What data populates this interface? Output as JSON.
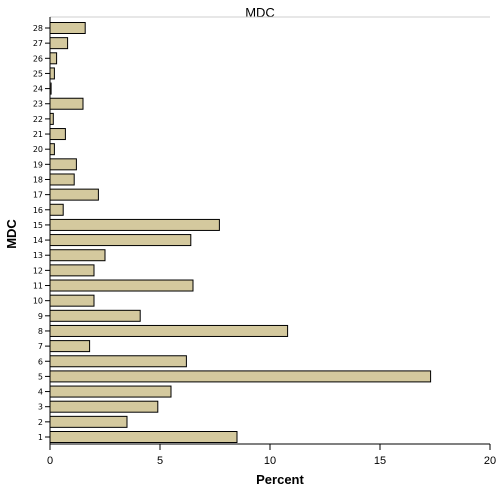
{
  "chart_data": {
    "type": "bar",
    "orientation": "horizontal",
    "title": "MDC",
    "xlabel": "Percent",
    "ylabel": "MDC",
    "categories": [
      "1",
      "2",
      "3",
      "4",
      "5",
      "6",
      "7",
      "8",
      "9",
      "10",
      "11",
      "12",
      "13",
      "14",
      "15",
      "16",
      "17",
      "18",
      "19",
      "20",
      "21",
      "22",
      "23",
      "24",
      "25",
      "26",
      "27",
      "28"
    ],
    "values": [
      8.5,
      3.5,
      4.9,
      5.5,
      17.3,
      6.2,
      1.8,
      10.8,
      4.1,
      2.0,
      6.5,
      2.0,
      2.5,
      6.4,
      7.7,
      0.6,
      2.2,
      1.1,
      1.2,
      0.2,
      0.7,
      0.15,
      1.5,
      0.05,
      0.2,
      0.3,
      0.8,
      1.6
    ],
    "xlim": [
      0,
      20
    ],
    "xticks": [
      0,
      5,
      10,
      15,
      20
    ],
    "bar_color": "#d4c99e",
    "grid": false
  }
}
